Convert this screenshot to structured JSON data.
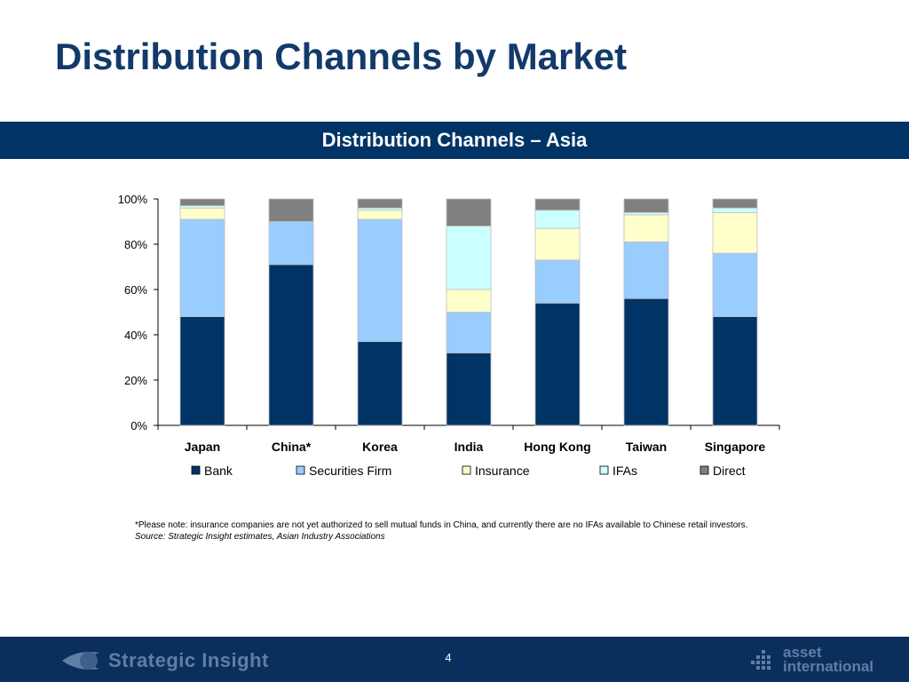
{
  "slide": {
    "title": "Distribution Channels by Market",
    "section_title": "Distribution Channels – Asia",
    "note": "*Please note: insurance companies are not yet authorized to sell mutual funds in China, and currently there are no IFAs available to Chinese retail investors.",
    "source": "Source: Strategic Insight estimates, Asian Industry Associations",
    "page_number": "4"
  },
  "footer": {
    "left_brand": "Strategic Insight",
    "right_brand": "asset\ninternational",
    "left_logo_icon": "swoosh-logo-icon",
    "right_logo_icon": "grid-logo-icon",
    "background": "#0b2f5c",
    "brand_color": "#5f7ea6"
  },
  "chart_data": {
    "type": "bar",
    "stacked": "percent",
    "categories": [
      "Japan",
      "China*",
      "Korea",
      "India",
      "Hong Kong",
      "Taiwan",
      "Singapore"
    ],
    "series": [
      {
        "name": "Bank",
        "color": "#003366",
        "values": [
          48,
          71,
          37,
          32,
          54,
          56,
          48
        ]
      },
      {
        "name": "Securities Firm",
        "color": "#99ccff",
        "values": [
          43,
          19,
          54,
          18,
          19,
          25,
          28
        ]
      },
      {
        "name": "Insurance",
        "color": "#ffffcc",
        "values": [
          5,
          0,
          4,
          10,
          14,
          12,
          18
        ]
      },
      {
        "name": "IFAs",
        "color": "#ccffff",
        "values": [
          1,
          0,
          1,
          28,
          8,
          1,
          2
        ]
      },
      {
        "name": "Direct",
        "color": "#808080",
        "values": [
          3,
          10,
          4,
          12,
          5,
          6,
          4
        ]
      }
    ],
    "y_ticks": [
      "0%",
      "20%",
      "40%",
      "60%",
      "80%",
      "100%"
    ],
    "ylim": [
      0,
      100
    ],
    "grid": false,
    "legend_position": "bottom"
  }
}
